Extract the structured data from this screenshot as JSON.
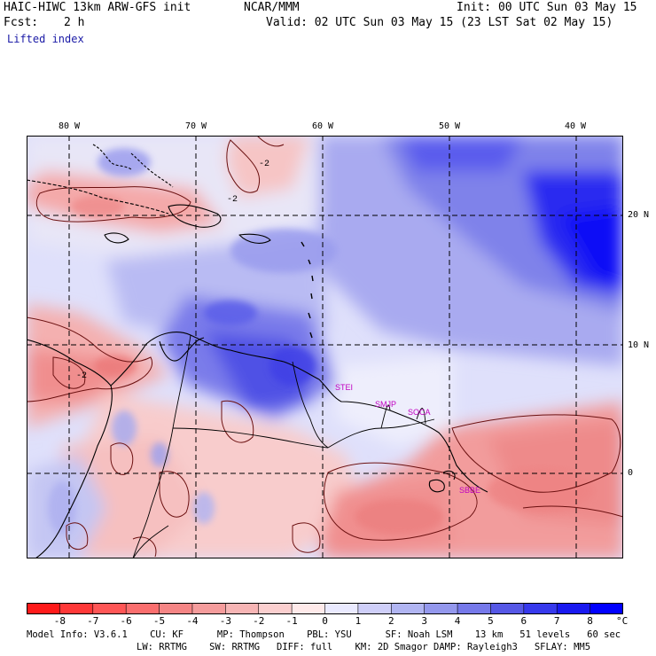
{
  "header": {
    "title": "HAIC-HIWC 13km ARW-GFS init",
    "org": "NCAR/MMM",
    "init": "Init: 00 UTC Sun 03 May 15",
    "fcst_label": "Fcst:",
    "fcst_value": "2 h",
    "valid": "Valid: 02 UTC Sun 03 May 15 (23 LST Sat 02 May 15)",
    "field": "Lifted index"
  },
  "map": {
    "lon_labels": [
      "80 W",
      "70 W",
      "60 W",
      "50 W",
      "40 W"
    ],
    "lat_labels": [
      "20 N",
      "10 N",
      "0"
    ],
    "stations": [
      "STEI",
      "SMJP",
      "SOCA",
      "SBBE"
    ],
    "contour_labels": [
      "-2",
      "-2",
      "-2"
    ]
  },
  "colorbar": {
    "unit": "°C",
    "ticks": [
      "-8",
      "-7",
      "-6",
      "-5",
      "-4",
      "-3",
      "-2",
      "-1",
      "0",
      "1",
      "2",
      "3",
      "4",
      "5",
      "6",
      "7",
      "8"
    ],
    "colors": [
      "#ff1a1a",
      "#ff3838",
      "#ff5656",
      "#fa6e6e",
      "#f58585",
      "#f59c9c",
      "#f7b5b5",
      "#fbcfcf",
      "#ffeaea",
      "#eaeaff",
      "#cfcff9",
      "#b1b5f2",
      "#9498ed",
      "#7679ea",
      "#5658e6",
      "#3739ec",
      "#1919f0",
      "#0000ff"
    ]
  },
  "footer": {
    "line1": "Model Info: V3.6.1    CU: KF      MP: Thompson    PBL: YSU      SF: Noah LSM    13 km   51 levels   60 sec",
    "line2": "LW: RRTMG    SW: RRTMG   DIFF: full    KM: 2D Smagor DAMP: Rayleigh3   SFLAY: MM5"
  }
}
